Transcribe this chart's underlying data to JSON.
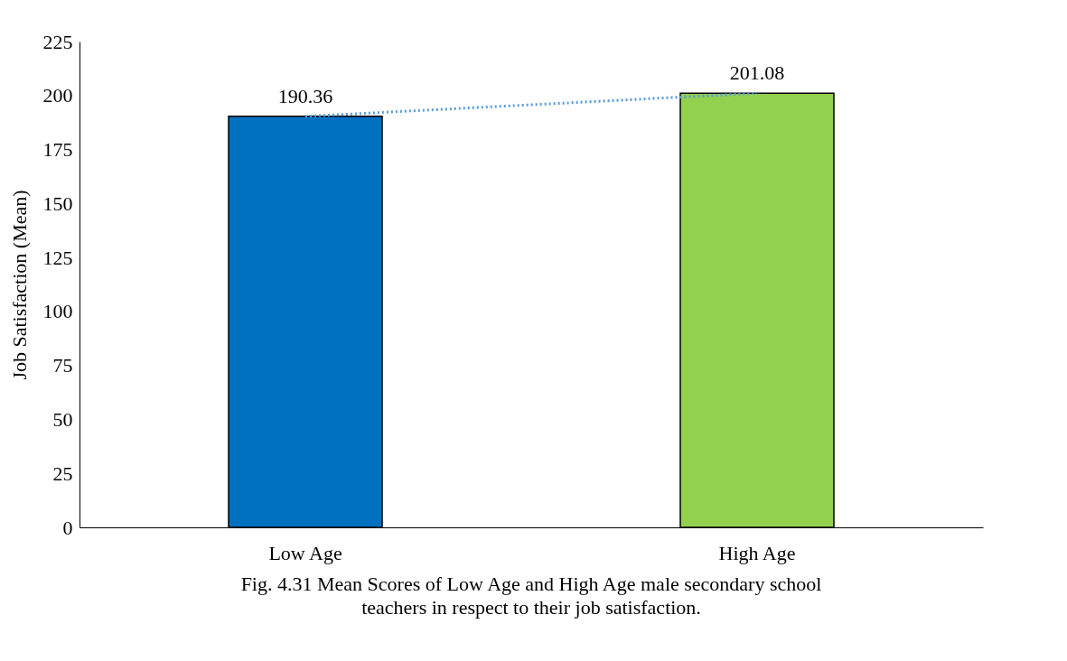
{
  "chart_data": {
    "type": "bar",
    "categories": [
      "Low Age",
      "High Age"
    ],
    "ylabel": "Job Satisfaction (Mean)",
    "ylim": [
      0,
      225
    ],
    "yticks": [
      0,
      25,
      50,
      75,
      100,
      125,
      150,
      175,
      200,
      225
    ],
    "grid": false,
    "series": [
      {
        "values": [
          190.36,
          201.08
        ],
        "value_labels": [
          "190.36",
          "201.08"
        ],
        "colors": [
          "#0070c0",
          "#92d050"
        ]
      },
      {
        "type": "line",
        "values": [
          190.36,
          201.08
        ],
        "color": "#5b9bd5",
        "line_style": "dotted",
        "marker": "none"
      }
    ],
    "annotations": [
      "Fig. 4.31  Mean Scores of Low Age and High Age male secondary school teachers in respect to their job satisfaction."
    ]
  }
}
